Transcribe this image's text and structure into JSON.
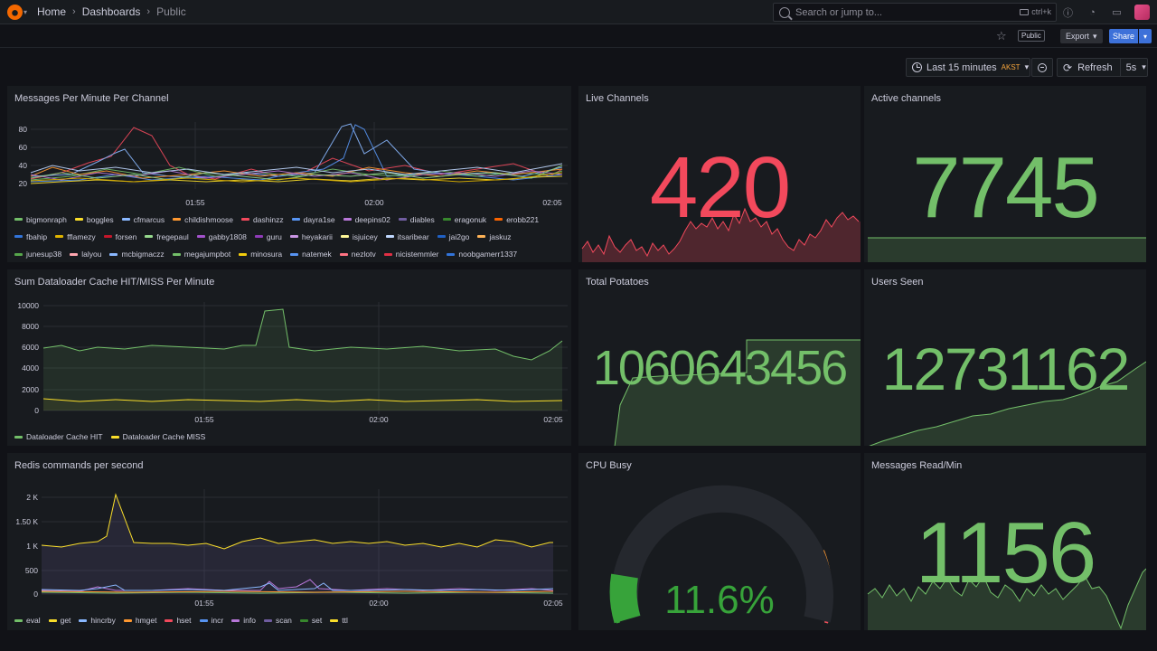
{
  "topbar": {
    "breadcrumb": [
      "Home",
      "Dashboards",
      "Public"
    ],
    "search_placeholder": "Search or jump to...",
    "shortcut": "ctrl+k"
  },
  "toolbar": {
    "public_label": "Public",
    "export_label": "Export",
    "share_label": "Share"
  },
  "time": {
    "range": "Last 15 minutes",
    "timezone": "AKST",
    "refresh_label": "Refresh",
    "refresh_interval": "5s"
  },
  "panels": {
    "messages": {
      "title": "Messages Per Minute Per Channel",
      "yticks": [
        "80",
        "60",
        "40",
        "20"
      ],
      "xticks": [
        "01:55",
        "02:00",
        "02:05"
      ],
      "legend": [
        {
          "name": "bigmonraph",
          "color": "#73bf69"
        },
        {
          "name": "boggles",
          "color": "#fade2a"
        },
        {
          "name": "cfmarcus",
          "color": "#8ab8ff"
        },
        {
          "name": "childishmoose",
          "color": "#ff9830"
        },
        {
          "name": "dashinzz",
          "color": "#f2495c"
        },
        {
          "name": "dayra1se",
          "color": "#5794f2"
        },
        {
          "name": "deepins02",
          "color": "#b877d9"
        },
        {
          "name": "diables",
          "color": "#705da0"
        },
        {
          "name": "eragonuk",
          "color": "#37872d"
        },
        {
          "name": "erobb221",
          "color": "#fa6400"
        },
        {
          "name": "fbahip",
          "color": "#3274d9"
        },
        {
          "name": "fflamezy",
          "color": "#e0b400"
        },
        {
          "name": "forsen",
          "color": "#c4162a"
        },
        {
          "name": "fregepaul",
          "color": "#96d98d"
        },
        {
          "name": "gabby1808",
          "color": "#a352cc"
        },
        {
          "name": "guru",
          "color": "#8f3bb8"
        },
        {
          "name": "heyakarii",
          "color": "#ca95e5"
        },
        {
          "name": "isjuicey",
          "color": "#fff899"
        },
        {
          "name": "itsaribear",
          "color": "#c0d8ff"
        },
        {
          "name": "jai2go",
          "color": "#1f60c4"
        },
        {
          "name": "jaskuz",
          "color": "#ffb357"
        },
        {
          "name": "junesup38",
          "color": "#56a64b"
        },
        {
          "name": "lalyou",
          "color": "#ffa6b0"
        },
        {
          "name": "mcbigmaczz",
          "color": "#8ab8ff"
        },
        {
          "name": "megajumpbot",
          "color": "#73bf69"
        },
        {
          "name": "minosura",
          "color": "#f2cc0c"
        },
        {
          "name": "natemek",
          "color": "#5794f2"
        },
        {
          "name": "nezlotv",
          "color": "#ff7383"
        },
        {
          "name": "nicistemmler",
          "color": "#e02f44"
        },
        {
          "name": "noobgamerr1337",
          "color": "#3274d9"
        }
      ]
    },
    "dataloader": {
      "title": "Sum Dataloader Cache HIT/MISS Per Minute",
      "yticks": [
        "10000",
        "8000",
        "6000",
        "4000",
        "2000",
        "0"
      ],
      "xticks": [
        "01:55",
        "02:00",
        "02:05"
      ],
      "legend": [
        {
          "name": "Dataloader Cache HIT",
          "color": "#73bf69"
        },
        {
          "name": "Dataloader Cache MISS",
          "color": "#fade2a"
        }
      ]
    },
    "redis": {
      "title": "Redis commands per second",
      "yticks": [
        "2 K",
        "1.50 K",
        "1 K",
        "500",
        "0"
      ],
      "xticks": [
        "01:55",
        "02:00",
        "02:05"
      ],
      "legend": [
        {
          "name": "eval",
          "color": "#73bf69"
        },
        {
          "name": "get",
          "color": "#fade2a"
        },
        {
          "name": "hincrby",
          "color": "#8ab8ff"
        },
        {
          "name": "hmget",
          "color": "#ff9830"
        },
        {
          "name": "hset",
          "color": "#f2495c"
        },
        {
          "name": "incr",
          "color": "#5794f2"
        },
        {
          "name": "info",
          "color": "#b877d9"
        },
        {
          "name": "scan",
          "color": "#705da0"
        },
        {
          "name": "set",
          "color": "#37872d"
        },
        {
          "name": "ttl",
          "color": "#fade2a"
        }
      ]
    },
    "live_channels": {
      "title": "Live Channels",
      "value": "420",
      "color": "#f2495c"
    },
    "active_channels": {
      "title": "Active channels",
      "value": "7745",
      "color": "#73bf69"
    },
    "total_potatoes": {
      "title": "Total Potatoes",
      "value": "1060643456",
      "color": "#73bf69"
    },
    "users_seen": {
      "title": "Users Seen",
      "value": "12731162",
      "color": "#73bf69"
    },
    "cpu_busy": {
      "title": "CPU Busy",
      "value": "11.6%",
      "percent": 11.6,
      "color": "#37a33a"
    },
    "messages_read": {
      "title": "Messages Read/Min",
      "value": "1156",
      "color": "#73bf69"
    }
  }
}
